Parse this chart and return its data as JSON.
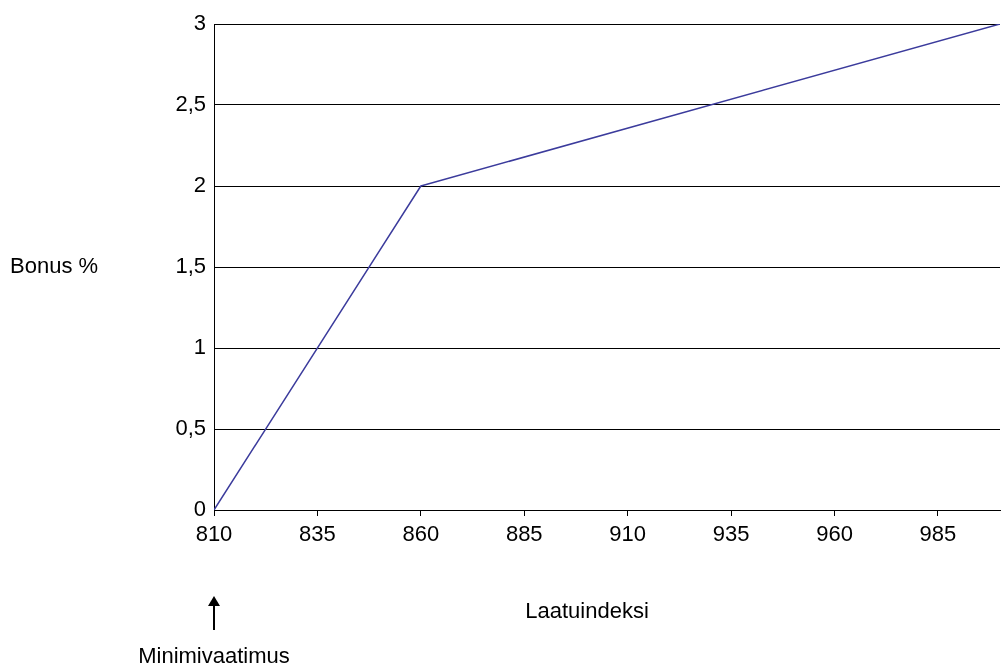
{
  "chart_data": {
    "type": "line",
    "xlabel": "Laatuindeksi",
    "ylabel": "Bonus %",
    "x": [
      810,
      860,
      1000
    ],
    "series": [
      {
        "color": "#3b3b9c",
        "values": [
          0,
          2,
          3
        ]
      }
    ],
    "xlim": [
      810,
      1000
    ],
    "xticks": [
      810,
      835,
      860,
      885,
      910,
      935,
      960,
      985
    ],
    "ylim": [
      0,
      3
    ],
    "yticks": [
      0,
      {
        "value": 0.5,
        "label": "0,5"
      },
      1,
      {
        "value": 1.5,
        "label": "1,5"
      },
      2,
      {
        "value": 2.5,
        "label": "2,5"
      },
      3
    ],
    "grid": "y",
    "legend": false,
    "marker": "none",
    "line_style": "solid",
    "annotations": [
      "Minimivaatimus"
    ]
  }
}
